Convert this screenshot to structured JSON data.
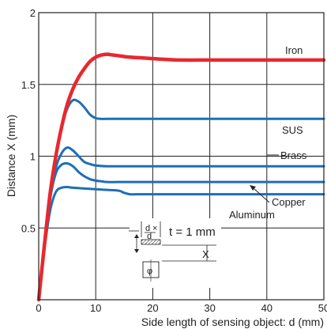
{
  "chart_data": {
    "type": "line",
    "title": "",
    "xlabel": "Side length of sensing object: d (mm)",
    "ylabel": "Distance X (mm)",
    "xlim": [
      0,
      50
    ],
    "ylim": [
      0,
      2
    ],
    "xticks": [
      0,
      10,
      20,
      30,
      40,
      50
    ],
    "yticks": [
      0.5,
      1,
      1.5,
      2
    ],
    "xtick_labels": [
      "0",
      "10",
      "20",
      "30",
      "40",
      "50"
    ],
    "ytick_labels": [
      "0.5",
      "1",
      "1.5",
      "2"
    ],
    "grid": true,
    "series": [
      {
        "name": "Iron",
        "color": "#e8282d",
        "x": [
          0,
          1,
          2,
          3,
          4,
          5,
          6,
          7,
          8,
          9,
          10,
          11,
          12,
          13,
          14,
          16,
          18,
          20,
          22,
          25,
          30,
          35,
          40,
          45,
          50
        ],
        "y": [
          0,
          0.38,
          0.74,
          1.0,
          1.2,
          1.36,
          1.47,
          1.55,
          1.61,
          1.66,
          1.69,
          1.705,
          1.71,
          1.705,
          1.7,
          1.69,
          1.685,
          1.68,
          1.675,
          1.67,
          1.67,
          1.67,
          1.67,
          1.67,
          1.67
        ]
      },
      {
        "name": "SUS",
        "color": "#1f6eb5",
        "x": [
          0,
          1,
          2,
          3,
          4,
          5,
          6,
          7,
          8,
          9,
          10,
          11,
          12,
          14,
          20,
          30,
          40,
          50
        ],
        "y": [
          0,
          0.38,
          0.74,
          1.0,
          1.2,
          1.33,
          1.39,
          1.38,
          1.34,
          1.29,
          1.265,
          1.26,
          1.26,
          1.26,
          1.26,
          1.26,
          1.26,
          1.26
        ]
      },
      {
        "name": "Brass",
        "color": "#1f6eb5",
        "x": [
          0,
          1,
          2,
          3,
          4,
          5,
          6,
          7,
          8,
          9,
          10,
          12,
          14,
          16,
          20,
          30,
          40,
          50
        ],
        "y": [
          0,
          0.38,
          0.72,
          0.92,
          1.02,
          1.06,
          1.04,
          1.0,
          0.96,
          0.945,
          0.935,
          0.93,
          0.93,
          0.93,
          0.93,
          0.93,
          0.93,
          0.93
        ]
      },
      {
        "name": "Aluminum",
        "color": "#1f6eb5",
        "x": [
          0,
          1,
          2,
          3,
          4,
          5,
          6,
          7,
          8,
          9,
          10,
          11,
          12,
          14,
          20,
          30,
          40,
          50
        ],
        "y": [
          0,
          0.37,
          0.7,
          0.88,
          0.94,
          0.95,
          0.93,
          0.89,
          0.86,
          0.84,
          0.83,
          0.825,
          0.82,
          0.82,
          0.82,
          0.82,
          0.82,
          0.82
        ]
      },
      {
        "name": "Copper",
        "color": "#1f6eb5",
        "x": [
          0,
          1,
          2,
          3,
          4,
          5,
          6,
          8,
          10,
          12,
          14,
          15,
          16,
          18,
          20,
          30,
          40,
          50
        ],
        "y": [
          0,
          0.35,
          0.62,
          0.75,
          0.78,
          0.785,
          0.78,
          0.775,
          0.77,
          0.765,
          0.76,
          0.745,
          0.735,
          0.735,
          0.735,
          0.735,
          0.735,
          0.735
        ]
      }
    ],
    "inset": {
      "dimension_label": "d",
      "times_symbol": "×",
      "thickness_label": "t = 1 mm",
      "distance_label": "X",
      "sensor_symbol": "φ"
    }
  }
}
